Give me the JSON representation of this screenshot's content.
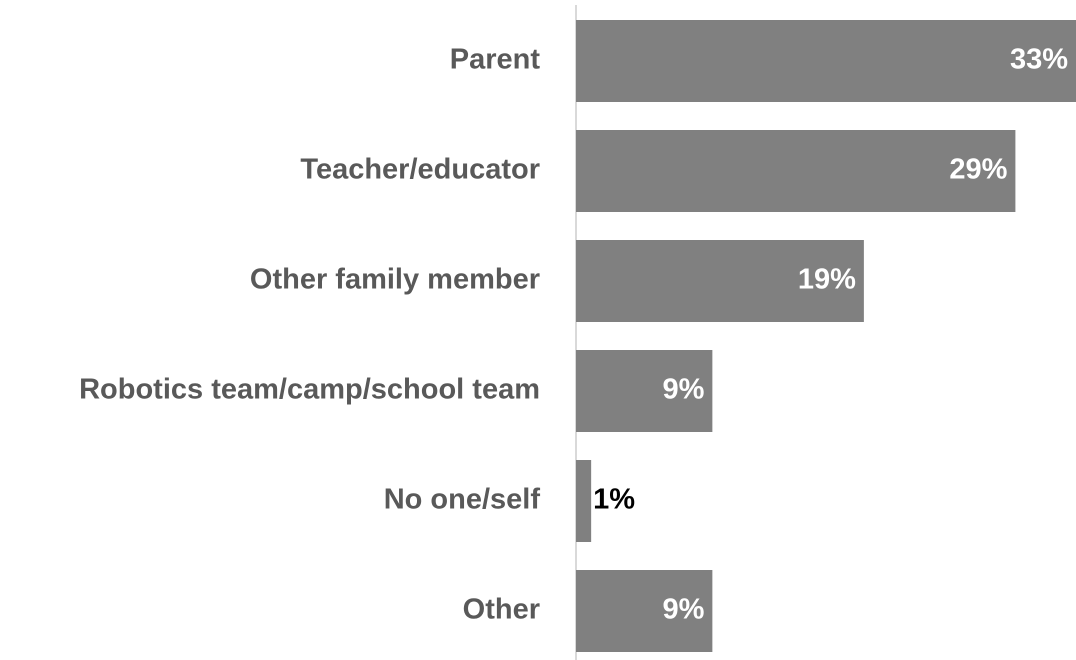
{
  "chart_data": {
    "type": "hbar",
    "categories": [
      "Parent",
      "Teacher/educator",
      "Other family member",
      "Robotics team/camp/school team",
      "No one/self",
      "Other"
    ],
    "values": [
      33,
      29,
      19,
      9,
      1,
      9
    ],
    "value_labels": [
      "33%",
      "29%",
      "19%",
      "9%",
      "1%",
      "9%"
    ],
    "color": "#808080",
    "xlim": [
      0,
      33
    ]
  }
}
